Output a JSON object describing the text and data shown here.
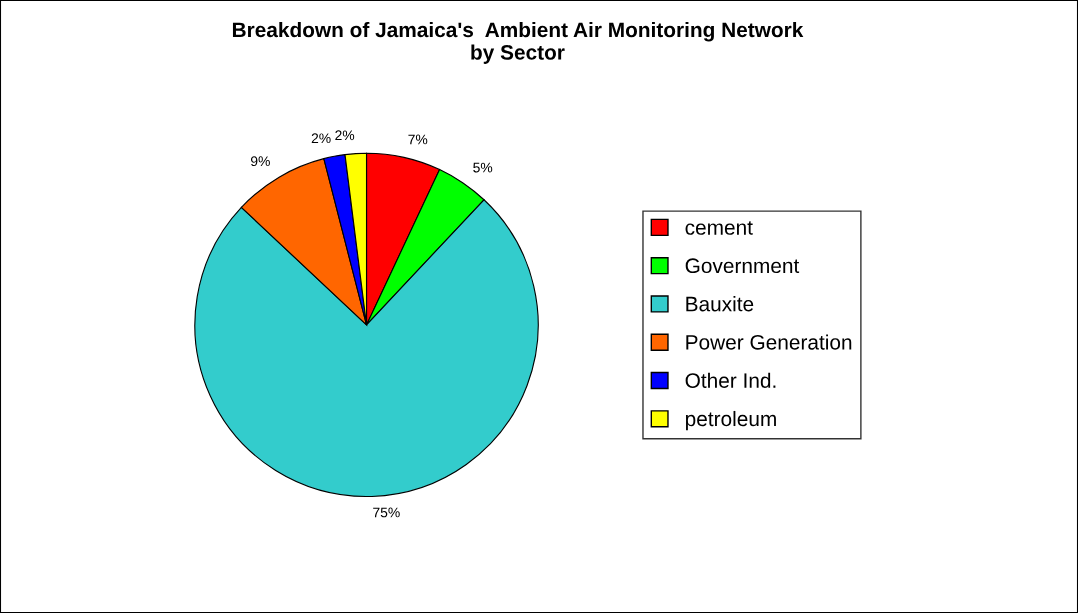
{
  "chart_data": {
    "type": "pie",
    "title": "Breakdown of Jamaica's  Ambient Air Monitoring Network\nby Sector",
    "categories": [
      "cement",
      "Government",
      "Bauxite",
      "Power Generation",
      "Other Ind.",
      "petroleum"
    ],
    "values": [
      7,
      5,
      75,
      9,
      2,
      2
    ],
    "value_labels": [
      "7%",
      "5%",
      "75%",
      "9%",
      "2%",
      "2%"
    ],
    "colors": [
      "#ff0000",
      "#00ff00",
      "#33cccc",
      "#ff6600",
      "#0000ff",
      "#ffff00"
    ],
    "legend": "right"
  }
}
